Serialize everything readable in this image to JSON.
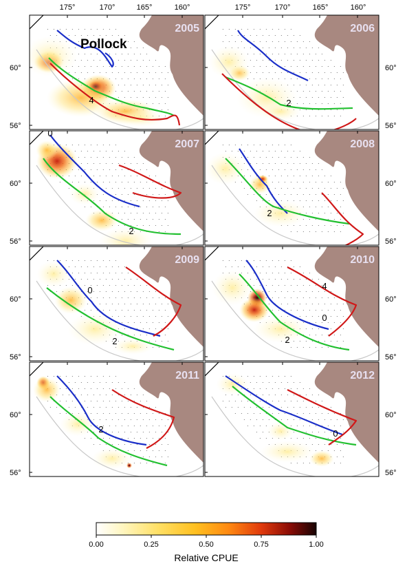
{
  "species_label": "Pollock",
  "lon_ticks": [
    "175°",
    "170°",
    "165°",
    "160°"
  ],
  "lat_ticks": [
    "60°",
    "56°"
  ],
  "panels": [
    {
      "year": "2005",
      "contour_labels": [
        "4"
      ]
    },
    {
      "year": "2006",
      "contour_labels": [
        "2"
      ]
    },
    {
      "year": "2007",
      "contour_labels": [
        "0",
        "2"
      ]
    },
    {
      "year": "2008",
      "contour_labels": [
        "2"
      ]
    },
    {
      "year": "2009",
      "contour_labels": [
        "0",
        "2"
      ]
    },
    {
      "year": "2010",
      "contour_labels": [
        "4",
        "0",
        "2"
      ]
    },
    {
      "year": "2011",
      "contour_labels": [
        "2"
      ]
    },
    {
      "year": "2012",
      "contour_labels": [
        "0"
      ]
    }
  ],
  "colorbar": {
    "title": "Relative CPUE",
    "ticks": [
      "0.00",
      "0.25",
      "0.50",
      "0.75",
      "1.00"
    ],
    "stops": [
      "#ffffff",
      "#fff3a8",
      "#ffd23a",
      "#ff9a18",
      "#e8400c",
      "#8b0c06",
      "#1a0404"
    ]
  },
  "colors": {
    "land": "#a88880",
    "coast": "#c8c8c8",
    "contour_cold": "#1a2ec8",
    "contour_mid": "#22c030",
    "contour_warm": "#d01818",
    "year_text": "#e8e0f0"
  }
}
